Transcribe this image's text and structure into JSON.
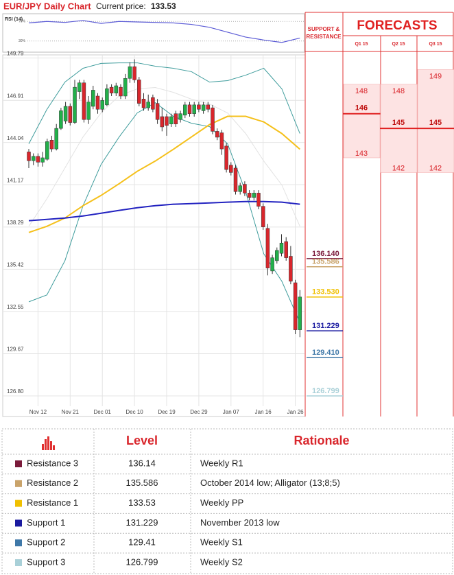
{
  "header": {
    "title": "EUR/JPY Daily Chart",
    "price_label": "Current price:",
    "price": 133.53
  },
  "chart_data": {
    "type": "candlestick",
    "categories": [
      null,
      null,
      "Nov 12",
      null,
      null,
      null,
      null,
      null,
      null,
      "Nov 21",
      null,
      null,
      null,
      null,
      null,
      null,
      "Dec 01",
      null,
      null,
      null,
      null,
      null,
      null,
      "Dec 10",
      null,
      null,
      null,
      null,
      null,
      null,
      "Dec 19",
      null,
      null,
      null,
      null,
      null,
      null,
      "Dec 29",
      null,
      null,
      null,
      null,
      null,
      null,
      "Jan 07",
      null,
      null,
      null,
      null,
      null,
      null,
      "Jan 16",
      null,
      null,
      null,
      null,
      null,
      null,
      "Jan 26",
      null
    ],
    "open": [
      143.4,
      142.8,
      143.1,
      142.7,
      142.9,
      144.2,
      143.6,
      145.0,
      145.5,
      146.5,
      145.4,
      147.5,
      148.1,
      145.6,
      146.5,
      147.2,
      146.3,
      146.6,
      147.8,
      147.4,
      147.8,
      147.2,
      148.4,
      149.2,
      148.3,
      147.0,
      146.4,
      147.1,
      146.7,
      145.8,
      145.8,
      145.3,
      146.0,
      145.6,
      145.9,
      146.6,
      146.0,
      146.6,
      146.2,
      146.6,
      146.4,
      144.8,
      144.7,
      143.8,
      142.5,
      142.3,
      140.7,
      141.2,
      140.6,
      140.3,
      140.6,
      139.7,
      138.2,
      135.3,
      136.0,
      136.5,
      137.3,
      136.3,
      134.5,
      131.3
    ],
    "high": [
      143.6,
      143.3,
      143.3,
      143.4,
      144.3,
      144.5,
      145.3,
      146.4,
      146.8,
      146.7,
      148.3,
      148.3,
      148.3,
      147.2,
      147.9,
      147.4,
      147.1,
      148.0,
      148.0,
      148.1,
      148.0,
      148.7,
      149.5,
      149.7,
      148.5,
      147.4,
      147.3,
      147.3,
      147.0,
      146.4,
      146.0,
      146.0,
      146.2,
      146.2,
      146.8,
      146.8,
      146.8,
      146.8,
      146.8,
      146.8,
      146.6,
      145.0,
      144.9,
      144.0,
      142.7,
      142.5,
      141.3,
      141.4,
      140.8,
      140.8,
      140.8,
      139.9,
      138.5,
      136.4,
      136.9,
      137.8,
      137.6,
      137.0,
      134.7,
      134.0
    ],
    "low": [
      142.3,
      142.5,
      142.4,
      142.4,
      142.8,
      143.4,
      143.5,
      144.9,
      145.3,
      145.2,
      145.3,
      147.0,
      145.4,
      145.3,
      146.3,
      146.0,
      146.1,
      146.5,
      147.2,
      147.2,
      147.0,
      147.0,
      148.1,
      148.1,
      146.5,
      146.2,
      146.2,
      146.1,
      145.3,
      144.8,
      144.5,
      145.1,
      145.1,
      145.4,
      145.7,
      145.8,
      145.8,
      146.1,
      146.0,
      146.1,
      144.6,
      144.2,
      143.2,
      142.0,
      141.8,
      140.5,
      140.5,
      140.4,
      140.1,
      140.1,
      139.5,
      138.1,
      135.0,
      135.1,
      135.8,
      136.3,
      136.0,
      134.4,
      131.0,
      130.8
    ],
    "close": [
      142.8,
      143.1,
      142.7,
      143.0,
      144.1,
      143.6,
      145.0,
      146.2,
      146.5,
      145.4,
      147.8,
      148.1,
      145.6,
      146.8,
      147.6,
      146.3,
      146.9,
      147.7,
      147.4,
      147.9,
      147.2,
      148.4,
      149.2,
      148.3,
      146.7,
      146.4,
      146.8,
      146.3,
      145.6,
      145.1,
      145.2,
      145.8,
      145.3,
      146.0,
      146.6,
      146.0,
      146.6,
      146.3,
      146.6,
      146.3,
      144.8,
      144.4,
      143.6,
      142.2,
      142.0,
      140.7,
      141.1,
      140.6,
      140.3,
      140.6,
      139.7,
      138.3,
      135.5,
      136.2,
      136.7,
      137.2,
      136.2,
      134.6,
      131.3,
      133.53
    ],
    "up_color": "#22b04a",
    "down_color": "#d9262c",
    "overlays": [
      {
        "color": "#e2e2e2",
        "values": [
          138.34,
          140.21,
          142.31,
          144.42,
          146.05,
          147.22,
          147.69,
          147.78,
          147.45,
          146.99,
          146.66,
          146.05,
          144.65,
          142.78,
          141.15,
          138.34
        ]
      },
      {
        "color": "#3e9c9c",
        "values": [
          143.95,
          146.29,
          148.15,
          149.09,
          149.42,
          149.46,
          149.46,
          149.23,
          149.09,
          148.86,
          148.15,
          148.25,
          148.62,
          149.09,
          147.69,
          144.65
        ]
      },
      {
        "color": "#3e9c9c",
        "values": [
          133.2,
          133.67,
          136.0,
          139.74,
          142.55,
          144.42,
          146.05,
          146.75,
          145.82,
          145.35,
          145.12,
          143.95,
          140.68,
          136.47,
          134.6,
          131.8
        ]
      },
      {
        "color": "#f5c01a",
        "values": [
          137.92,
          138.34,
          138.9,
          139.74,
          140.44,
          141.24,
          142.08,
          142.78,
          143.58,
          144.42,
          145.26,
          145.82,
          145.82,
          145.44,
          144.65,
          143.58
        ]
      },
      {
        "color": "#2222c0",
        "values": [
          138.72,
          138.81,
          138.9,
          139.04,
          139.23,
          139.42,
          139.6,
          139.74,
          139.84,
          139.88,
          139.93,
          139.98,
          140.02,
          140.02,
          139.98,
          139.84
        ]
      }
    ],
    "ylim": [
      125.4,
      150.0
    ],
    "yticks": [
      149.79,
      146.91,
      144.04,
      141.17,
      138.29,
      135.42,
      132.55,
      129.67,
      {
        "value": 126.8,
        "label": "126.80"
      }
    ],
    "grid": true,
    "rsi": {
      "label": "RSI (14)",
      "ylim": [
        10,
        83
      ],
      "yticks": [
        {
          "value": 70,
          "label": "70%"
        },
        {
          "value": 30,
          "label": "30%"
        }
      ],
      "color": "#5b5bd6",
      "values": [
        67,
        70,
        68,
        72,
        66,
        70,
        69,
        68,
        67,
        64,
        58,
        48,
        38,
        32,
        27,
        36
      ]
    },
    "levels": {
      "values": [
        136.14,
        135.586,
        133.53,
        131.229,
        129.41,
        126.799
      ],
      "value_labels": [
        "136.140",
        "135.586",
        "133.530",
        "131.229",
        "129.410",
        "126.799"
      ],
      "colors": [
        "#7a1a3a",
        "#c9a36a",
        "#f0c000",
        "#1a1aa0",
        "#3f78a8",
        "#a9d0d8"
      ]
    },
    "sr_title": [
      "SUPPORT &",
      "RESISTANCE"
    ],
    "forecast_title": "FORECASTS",
    "forecasts": [
      {
        "quarter": "Q1 15",
        "high": 148,
        "mid": 146,
        "low": 143
      },
      {
        "quarter": "Q2 15",
        "high": 148,
        "mid": 145,
        "low": 142
      },
      {
        "quarter": "Q3 15",
        "high": 149,
        "mid": 145,
        "low": 142
      }
    ]
  },
  "table": {
    "columns": [
      "Level",
      "Rationale"
    ],
    "rows": [
      [
        "Resistance 3",
        "Weekly R1"
      ],
      [
        "Resistance 2",
        "October 2014 low; Alligator (13;8;5)"
      ],
      [
        "Resistance 1",
        "Weekly PP"
      ],
      [
        "Support 1",
        "November 2013 low"
      ],
      [
        "Support 2",
        "Weekly S1"
      ],
      [
        "Support 3",
        "Weekly S2"
      ]
    ]
  }
}
